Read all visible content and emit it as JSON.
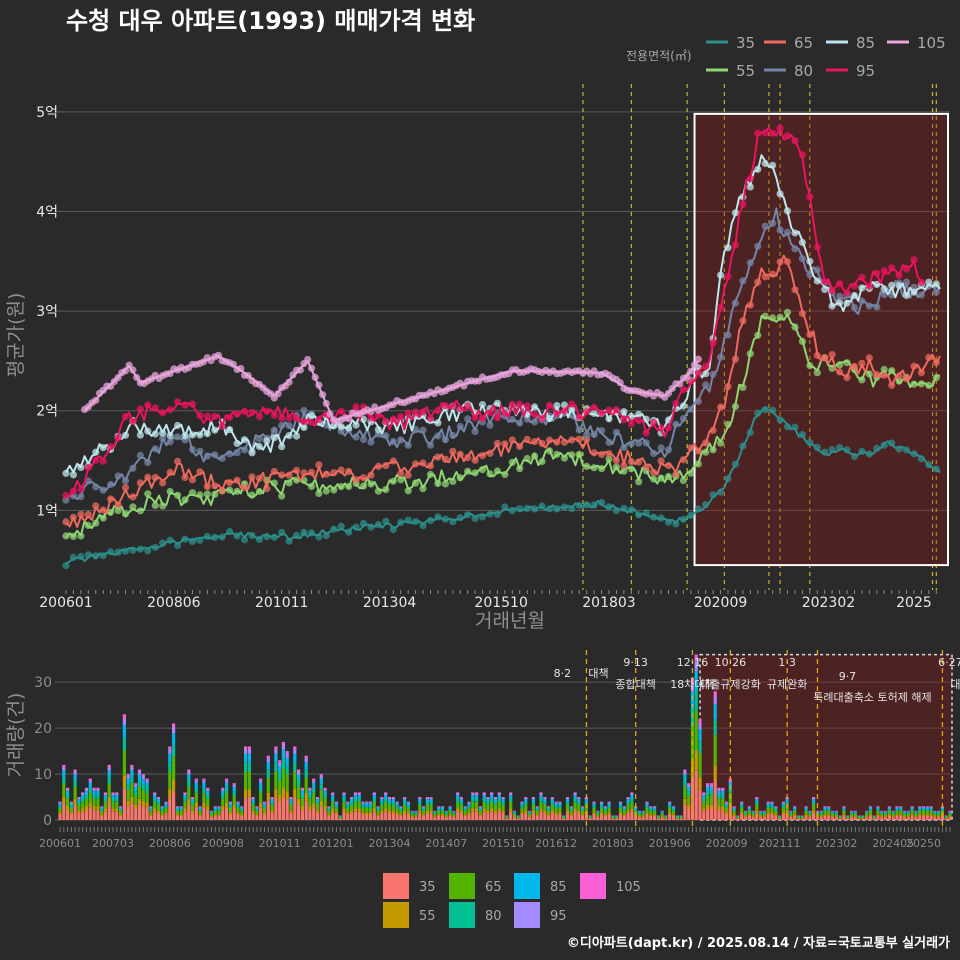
{
  "chart_data": [
    {
      "type": "line",
      "title": "수청 대우 아파트(1993) 매매가격 변화",
      "xlabel": "거래년월",
      "ylabel": "평균가(원)",
      "x_ticks": [
        "200601",
        "200806",
        "201011",
        "201304",
        "201510",
        "201803",
        "202009",
        "202302",
        "2025"
      ],
      "y_ticks": [
        "1억",
        "2억",
        "3억",
        "4억",
        "5억"
      ],
      "ylim": [
        0.2,
        5.3
      ],
      "xlim": [
        "2006-01",
        "2025-08"
      ],
      "legend_title": "전용면적(㎡)",
      "legend_position": "top-right",
      "highlight_box": {
        "x_start": "2020-02",
        "x_end": "2025-08",
        "y_start": 0.45,
        "y_end": 4.98
      },
      "policy_lines": [
        "2017-08",
        "2018-09",
        "2019-12",
        "2020-10",
        "2021-10",
        "2022-01",
        "2022-09",
        "2025-06",
        "2025-07"
      ],
      "series": [
        {
          "name": "35",
          "color": "#2c8f8c",
          "points": [
            [
              "2006-01",
              0.48
            ],
            [
              "2007-01",
              0.56
            ],
            [
              "2008-01",
              0.65
            ],
            [
              "2009-01",
              0.72
            ],
            [
              "2010-01",
              0.75
            ],
            [
              "2011-01",
              0.73
            ],
            [
              "2012-01",
              0.79
            ],
            [
              "2013-01",
              0.84
            ],
            [
              "2014-01",
              0.88
            ],
            [
              "2015-01",
              0.95
            ],
            [
              "2016-01",
              1.0
            ],
            [
              "2017-01",
              1.03
            ],
            [
              "2018-01",
              1.07
            ],
            [
              "2018-06",
              1.02
            ],
            [
              "2019-01",
              0.95
            ],
            [
              "2019-07",
              0.88
            ],
            [
              "2019-12",
              0.92
            ],
            [
              "2020-06",
              1.08
            ],
            [
              "2020-10",
              1.25
            ],
            [
              "2021-02",
              1.55
            ],
            [
              "2021-06",
              1.9
            ],
            [
              "2021-09",
              2.05
            ],
            [
              "2022-09",
              1.67
            ],
            [
              "2023-01",
              1.55
            ],
            [
              "2023-06",
              1.6
            ],
            [
              "2024-01",
              1.55
            ],
            [
              "2024-06",
              1.68
            ],
            [
              "2025-01",
              1.58
            ],
            [
              "2025-08",
              1.38
            ]
          ]
        },
        {
          "name": "55",
          "color": "#8fd673",
          "points": [
            [
              "2006-01",
              0.75
            ],
            [
              "2007-01",
              0.95
            ],
            [
              "2008-01",
              1.12
            ],
            [
              "2009-01",
              1.1
            ],
            [
              "2010-01",
              1.2
            ],
            [
              "2011-01",
              1.25
            ],
            [
              "2012-01",
              1.25
            ],
            [
              "2013-01",
              1.27
            ],
            [
              "2014-01",
              1.3
            ],
            [
              "2015-01",
              1.38
            ],
            [
              "2016-01",
              1.45
            ],
            [
              "2017-01",
              1.57
            ],
            [
              "2018-01",
              1.48
            ],
            [
              "2018-09",
              1.4
            ],
            [
              "2019-06",
              1.3
            ],
            [
              "2019-12",
              1.35
            ],
            [
              "2020-06",
              1.6
            ],
            [
              "2020-10",
              1.75
            ],
            [
              "2021-03",
              2.3
            ],
            [
              "2021-08",
              2.95
            ],
            [
              "2021-12",
              2.85
            ],
            [
              "2022-03",
              3.0
            ],
            [
              "2022-09",
              2.45
            ],
            [
              "2023-06",
              2.5
            ],
            [
              "2024-01",
              2.3
            ],
            [
              "2024-06",
              2.38
            ],
            [
              "2025-01",
              2.25
            ],
            [
              "2025-08",
              2.35
            ]
          ]
        },
        {
          "name": "65",
          "color": "#ee6a5f",
          "points": [
            [
              "2006-01",
              0.85
            ],
            [
              "2007-01",
              1.05
            ],
            [
              "2008-01",
              1.3
            ],
            [
              "2008-06",
              1.42
            ],
            [
              "2009-06",
              1.25
            ],
            [
              "2010-06",
              1.3
            ],
            [
              "2011-06",
              1.37
            ],
            [
              "2012-06",
              1.35
            ],
            [
              "2013-06",
              1.43
            ],
            [
              "2014-06",
              1.5
            ],
            [
              "2015-06",
              1.58
            ],
            [
              "2016-06",
              1.65
            ],
            [
              "2017-06",
              1.7
            ],
            [
              "2018-06",
              1.55
            ],
            [
              "2019-06",
              1.4
            ],
            [
              "2019-12",
              1.5
            ],
            [
              "2020-06",
              1.78
            ],
            [
              "2020-10",
              2.05
            ],
            [
              "2021-03",
              2.9
            ],
            [
              "2021-08",
              3.4
            ],
            [
              "2021-12",
              3.35
            ],
            [
              "2022-03",
              3.55
            ],
            [
              "2022-09",
              2.8
            ],
            [
              "2023-01",
              2.5
            ],
            [
              "2023-06",
              2.4
            ],
            [
              "2024-01",
              2.45
            ],
            [
              "2024-06",
              2.3
            ],
            [
              "2025-01",
              2.4
            ],
            [
              "2025-08",
              2.55
            ]
          ]
        },
        {
          "name": "80",
          "color": "#7585a6",
          "points": [
            [
              "2006-01",
              1.1
            ],
            [
              "2007-01",
              1.3
            ],
            [
              "2007-06",
              1.35
            ],
            [
              "2008-06",
              1.8
            ],
            [
              "2009-06",
              1.45
            ],
            [
              "2010-06",
              1.72
            ],
            [
              "2011-06",
              1.95
            ],
            [
              "2012-06",
              1.8
            ],
            [
              "2013-06",
              1.7
            ],
            [
              "2014-06",
              1.75
            ],
            [
              "2015-06",
              1.9
            ],
            [
              "2016-06",
              1.95
            ],
            [
              "2017-06",
              1.88
            ],
            [
              "2018-06",
              1.7
            ],
            [
              "2019-06",
              1.6
            ],
            [
              "2019-12",
              2.0
            ],
            [
              "2020-06",
              2.25
            ],
            [
              "2020-10",
              2.7
            ],
            [
              "2021-03",
              3.3
            ],
            [
              "2021-08",
              3.75
            ],
            [
              "2021-12",
              3.95
            ],
            [
              "2022-03",
              3.75
            ],
            [
              "2022-09",
              3.4
            ],
            [
              "2023-06",
              3.1
            ],
            [
              "2024-01",
              3.0
            ],
            [
              "2024-06",
              3.25
            ],
            [
              "2025-01",
              3.2
            ],
            [
              "2025-08",
              3.25
            ]
          ]
        },
        {
          "name": "85",
          "color": "#bfe6ec",
          "points": [
            [
              "2006-01",
              1.4
            ],
            [
              "2006-06",
              1.5
            ],
            [
              "2007-01",
              1.65
            ],
            [
              "2007-06",
              1.85
            ],
            [
              "2008-06",
              1.78
            ],
            [
              "2009-06",
              1.85
            ],
            [
              "2010-06",
              1.6
            ],
            [
              "2011-06",
              1.9
            ],
            [
              "2012-06",
              1.9
            ],
            [
              "2013-06",
              1.82
            ],
            [
              "2014-06",
              1.95
            ],
            [
              "2015-06",
              2.02
            ],
            [
              "2016-06",
              1.98
            ],
            [
              "2017-06",
              1.95
            ],
            [
              "2018-06",
              1.92
            ],
            [
              "2019-06",
              1.85
            ],
            [
              "2019-12",
              2.2
            ],
            [
              "2020-06",
              2.5
            ],
            [
              "2020-10",
              3.6
            ],
            [
              "2021-03",
              4.2
            ],
            [
              "2021-08",
              4.5
            ],
            [
              "2021-11",
              4.38
            ],
            [
              "2022-09",
              3.45
            ],
            [
              "2023-01",
              3.2
            ],
            [
              "2023-06",
              3.0
            ],
            [
              "2024-01",
              3.25
            ],
            [
              "2024-06",
              3.22
            ],
            [
              "2025-01",
              3.2
            ],
            [
              "2025-08",
              3.22
            ]
          ]
        },
        {
          "name": "95",
          "color": "#e8145e",
          "points": [
            [
              "2006-01",
              1.1
            ],
            [
              "2006-06",
              1.35
            ],
            [
              "2007-01",
              1.6
            ],
            [
              "2007-06",
              1.95
            ],
            [
              "2008-06",
              2.05
            ],
            [
              "2009-06",
              1.9
            ],
            [
              "2010-06",
              2.0
            ],
            [
              "2011-06",
              1.9
            ],
            [
              "2012-06",
              2.0
            ],
            [
              "2013-06",
              1.85
            ],
            [
              "2014-06",
              2.05
            ],
            [
              "2015-06",
              1.98
            ],
            [
              "2016-06",
              2.0
            ],
            [
              "2017-06",
              1.98
            ],
            [
              "2018-06",
              1.95
            ],
            [
              "2019-06",
              1.78
            ],
            [
              "2019-12",
              2.25
            ],
            [
              "2020-06",
              2.55
            ],
            [
              "2020-10",
              3.2
            ],
            [
              "2021-03",
              4.1
            ],
            [
              "2021-08",
              4.85
            ],
            [
              "2021-11",
              4.82
            ],
            [
              "2022-06",
              4.7
            ],
            [
              "2023-01",
              3.3
            ],
            [
              "2023-06",
              3.25
            ],
            [
              "2024-06",
              3.35
            ],
            [
              "2025-01",
              3.45
            ],
            [
              "2025-03",
              3.3
            ]
          ]
        },
        {
          "name": "105",
          "color": "#e8a6dc",
          "points": [
            [
              "2006-06",
              2.0
            ],
            [
              "2007-06",
              2.45
            ],
            [
              "2007-09",
              2.28
            ],
            [
              "2009-06",
              2.55
            ],
            [
              "2010-01",
              2.38
            ],
            [
              "2010-09",
              2.15
            ],
            [
              "2011-06",
              2.5
            ],
            [
              "2012-01",
              1.9
            ],
            [
              "2014-01",
              2.15
            ],
            [
              "2016-01",
              2.4
            ],
            [
              "2018-01",
              2.38
            ],
            [
              "2018-09",
              2.2
            ],
            [
              "2019-06",
              2.15
            ],
            [
              "2019-12",
              2.35
            ],
            [
              "2020-03",
              2.5
            ]
          ]
        }
      ]
    },
    {
      "type": "bar",
      "stacked": true,
      "ylabel": "거래량(건)",
      "y_ticks": [
        "0",
        "10",
        "20",
        "30"
      ],
      "ylim": [
        0,
        37
      ],
      "x_ticks": [
        "200601",
        "200703",
        "200806",
        "200908",
        "201011",
        "201201",
        "201304",
        "201407",
        "201510",
        "201612",
        "201803",
        "201906",
        "202009",
        "202111",
        "202302",
        "202405",
        "20250"
      ],
      "legend_position": "bottom",
      "highlight_box": {
        "x_start": "2020-02",
        "x_end": "2025-08",
        "y_start": 0,
        "y_end": 36
      },
      "series_names": [
        "35",
        "55",
        "65",
        "80",
        "85",
        "95",
        "105"
      ],
      "series_colors": [
        "#f8766d",
        "#c49a00",
        "#53b400",
        "#00c094",
        "#00b6eb",
        "#a58aff",
        "#fb61d7"
      ],
      "volume_peaks": [
        [
          "2007-06",
          23
        ],
        [
          "2007-08",
          12
        ],
        [
          "2008-06",
          16
        ],
        [
          "2008-07",
          21
        ],
        [
          "2010-10",
          16
        ],
        [
          "2011-01",
          15
        ],
        [
          "2019-12",
          31
        ],
        [
          "2020-01",
          36
        ],
        [
          "2020-02",
          22
        ],
        [
          "2020-06",
          28
        ]
      ],
      "annotations": [
        {
          "month": "2017-08",
          "date": "8·2",
          "text": "대책"
        },
        {
          "month": "2018-09",
          "date": "9·13",
          "text": "종합대책"
        },
        {
          "month": "2019-12",
          "date": "12·16",
          "text": "18차대책"
        },
        {
          "month": "2020-10",
          "date": "10·26",
          "text": "대출규제강화"
        },
        {
          "month": "2022-01",
          "date": "1·3",
          "text": "규제완화"
        },
        {
          "month": "2022-09",
          "date": "9·7",
          "text": "특례대출축소 토허제 해제"
        },
        {
          "month": "2025-06",
          "date": "6·27",
          "text": "대출규"
        }
      ]
    }
  ],
  "footer": "©디아파트(dapt.kr) / 2025.08.14 / 자료=국토교통부 실거래가"
}
